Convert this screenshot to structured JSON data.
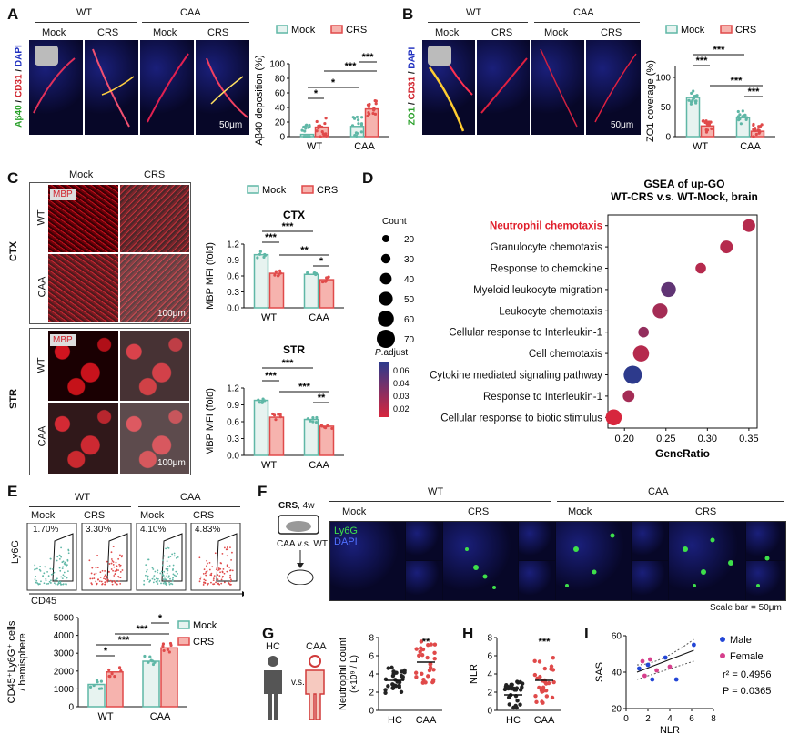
{
  "panels": {
    "A": {
      "letter": "A",
      "group_labels": [
        "WT",
        "CAA"
      ],
      "cond_labels": [
        "Mock",
        "CRS",
        "Mock",
        "CRS"
      ],
      "stain_green": "Aβ40",
      "stain_red": "CD31",
      "stain_blue": "DAPI",
      "scale": "50μm",
      "legend": [
        "Mock",
        "CRS"
      ],
      "ylabel": "Aβ40 deposition (%)",
      "yticks": [
        "0",
        "20",
        "40",
        "60",
        "80",
        "100"
      ],
      "xticks": [
        "WT",
        "CAA"
      ],
      "sig": [
        "*",
        "*",
        "***",
        "***"
      ]
    },
    "B": {
      "letter": "B",
      "group_labels": [
        "WT",
        "CAA"
      ],
      "cond_labels": [
        "Mock",
        "CRS",
        "Mock",
        "CRS"
      ],
      "stain_green": "ZO1",
      "stain_red": "CD31",
      "stain_blue": "DAPI",
      "scale": "50μm",
      "legend": [
        "Mock",
        "CRS"
      ],
      "ylabel": "ZO1 coverage (%)",
      "yticks": [
        "0",
        "50",
        "100"
      ],
      "xticks": [
        "WT",
        "CAA"
      ],
      "sig": [
        "***",
        "***",
        "***",
        "***"
      ]
    },
    "C": {
      "letter": "C",
      "col_labels": [
        "Mock",
        "CRS"
      ],
      "row_labels": [
        "WT",
        "CAA",
        "WT",
        "CAA"
      ],
      "region_labels": [
        "CTX",
        "STR"
      ],
      "stain": "MBP",
      "scale": "100μm",
      "legend": [
        "Mock",
        "CRS"
      ],
      "ylabel": "MBP MFI (fold)",
      "ctx_title": "CTX",
      "str_title": "STR",
      "yticks": [
        "0.0",
        "0.3",
        "0.6",
        "0.9",
        "1.2"
      ],
      "xticks": [
        "WT",
        "CAA"
      ],
      "ctx_sig": [
        "***",
        "***",
        "**",
        "*"
      ],
      "str_sig": [
        "***",
        "***",
        "***",
        "**"
      ]
    },
    "D": {
      "letter": "D",
      "title_line1": "GSEA of up-GO",
      "title_line2": "WT-CRS v.s. WT-Mock, brain",
      "count_title": "Count",
      "count_values": [
        "20",
        "30",
        "40",
        "50",
        "60",
        "70"
      ],
      "padj_title_italic": "P",
      "padj_title_rest": ".adjust",
      "padj_ticks": [
        "0.06",
        "0.04",
        "0.03",
        "0.02"
      ],
      "xlabel": "GeneRatio",
      "xticks": [
        "0.20",
        "0.25",
        "0.30",
        "0.35"
      ]
    },
    "E": {
      "letter": "E",
      "group_labels": [
        "WT",
        "CAA"
      ],
      "cond_labels": [
        "Mock",
        "CRS",
        "Mock",
        "CRS"
      ],
      "percents": [
        "1.70%",
        "3.30%",
        "4.10%",
        "4.83%"
      ],
      "flow_y": "Ly6G",
      "flow_x": "CD45",
      "legend": [
        "Mock",
        "CRS"
      ],
      "ylabel_line1": "CD45⁺Ly6G⁺ cells",
      "ylabel_line2": "/ hemisphere",
      "yticks": [
        "0",
        "1000",
        "2000",
        "3000",
        "4000",
        "5000"
      ],
      "xticks": [
        "WT",
        "CAA"
      ],
      "sig": [
        "*",
        "***",
        "***",
        "*"
      ]
    },
    "F": {
      "letter": "F",
      "crs_bold": "CRS",
      "crs_rest": ", 4w",
      "compare": "CAA v.s. WT",
      "group_labels": [
        "WT",
        "CAA"
      ],
      "cond_labels": [
        "Mock",
        "CRS",
        "Mock",
        "CRS"
      ],
      "stain_green": "Ly6G",
      "stain_blue": "DAPI",
      "scale": "Scale bar = 50μm"
    },
    "G": {
      "letter": "G",
      "hc": "HC",
      "caa": "CAA",
      "vs": "v.s.",
      "ylabel_line1": "Neutrophil count",
      "ylabel_line2": "(×10⁹ / L)",
      "yticks": [
        "0",
        "2",
        "4",
        "6",
        "8"
      ],
      "xticks": [
        "HC",
        "CAA"
      ],
      "sig": "**"
    },
    "H": {
      "letter": "H",
      "ylabel": "NLR",
      "yticks": [
        "0",
        "2",
        "4",
        "6",
        "8"
      ],
      "xticks": [
        "HC",
        "CAA"
      ],
      "sig": "***"
    },
    "I": {
      "letter": "I",
      "ylabel": "SAS",
      "xlabel": "NLR",
      "yticks": [
        "20",
        "40",
        "60"
      ],
      "xticks": [
        "0",
        "2",
        "4",
        "6",
        "8"
      ],
      "legend_male": "Male",
      "legend_female": "Female",
      "r2": "r² = 0.4956",
      "p": "P = 0.0365"
    }
  },
  "colors": {
    "mock": "#5fb7a6",
    "crs": "#e04a4a",
    "dot_high": "#d7263d",
    "dot_low": "#2d3a8c",
    "male": "#2346d6",
    "female": "#d63f8c"
  },
  "chart_data": [
    {
      "type": "bar",
      "panel": "A",
      "categories": [
        "WT",
        "CAA"
      ],
      "series": [
        {
          "name": "Mock",
          "values": [
            3,
            14
          ]
        },
        {
          "name": "CRS",
          "values": [
            13,
            38
          ]
        }
      ],
      "ylabel": "Aβ40 deposition (%)",
      "ylim": [
        0,
        100
      ]
    },
    {
      "type": "bar",
      "panel": "B",
      "categories": [
        "WT",
        "CAA"
      ],
      "series": [
        {
          "name": "Mock",
          "values": [
            66,
            32
          ]
        },
        {
          "name": "CRS",
          "values": [
            18,
            9
          ]
        }
      ],
      "ylabel": "ZO1 coverage (%)",
      "ylim": [
        0,
        120
      ]
    },
    {
      "type": "bar",
      "panel": "C-CTX",
      "title": "CTX",
      "categories": [
        "WT",
        "CAA"
      ],
      "series": [
        {
          "name": "Mock",
          "values": [
            1.0,
            0.63
          ]
        },
        {
          "name": "CRS",
          "values": [
            0.65,
            0.53
          ]
        }
      ],
      "ylabel": "MBP MFI (fold)",
      "ylim": [
        0,
        1.2
      ]
    },
    {
      "type": "bar",
      "panel": "C-STR",
      "title": "STR",
      "categories": [
        "WT",
        "CAA"
      ],
      "series": [
        {
          "name": "Mock",
          "values": [
            0.98,
            0.64
          ]
        },
        {
          "name": "CRS",
          "values": [
            0.68,
            0.52
          ]
        }
      ],
      "ylabel": "MBP MFI (fold)",
      "ylim": [
        0,
        1.2
      ]
    },
    {
      "type": "scatter",
      "panel": "D",
      "title": "GSEA of up-GO WT-CRS v.s. WT-Mock, brain",
      "xlabel": "GeneRatio",
      "xlim": [
        0.18,
        0.36
      ],
      "terms": [
        "Neutrophil chemotaxis",
        "Granulocyte chemotaxis",
        "Response to chemokine",
        "Myeloid leukocyte migration",
        "Leukocyte chemotaxis",
        "Cellular response to Interleukin-1",
        "Cell chemotaxis",
        "Cytokine mediated signaling pathway",
        "Response to Interleukin-1",
        "Cellular response to biotic stimulus"
      ],
      "gene_ratio": [
        0.35,
        0.323,
        0.292,
        0.253,
        0.243,
        0.223,
        0.22,
        0.21,
        0.205,
        0.187
      ],
      "count": [
        45,
        45,
        35,
        55,
        55,
        35,
        60,
        70,
        40,
        60
      ],
      "p_adjust": [
        0.02,
        0.02,
        0.02,
        0.045,
        0.025,
        0.03,
        0.02,
        0.06,
        0.025,
        0.01
      ]
    },
    {
      "type": "bar",
      "panel": "E",
      "categories": [
        "WT",
        "CAA"
      ],
      "series": [
        {
          "name": "Mock",
          "values": [
            1250,
            2550
          ]
        },
        {
          "name": "CRS",
          "values": [
            1950,
            3300
          ]
        }
      ],
      "ylabel": "CD45⁺Ly6G⁺ cells / hemisphere",
      "ylim": [
        0,
        5000
      ]
    },
    {
      "type": "scatter",
      "panel": "G",
      "categories": [
        "HC",
        "CAA"
      ],
      "means": [
        3.3,
        5.3
      ],
      "ylabel": "Neutrophil count (×10⁹ / L)",
      "ylim": [
        0,
        8
      ]
    },
    {
      "type": "scatter",
      "panel": "H",
      "categories": [
        "HC",
        "CAA"
      ],
      "means": [
        1.7,
        3.3
      ],
      "ylabel": "NLR",
      "ylim": [
        0,
        8
      ]
    },
    {
      "type": "scatter",
      "panel": "I",
      "xlabel": "NLR",
      "ylabel": "SAS",
      "xlim": [
        0,
        8
      ],
      "ylim": [
        20,
        60
      ],
      "points": [
        [
          1.2,
          42,
          "Male"
        ],
        [
          1.5,
          46,
          "Female"
        ],
        [
          1.7,
          38,
          "Female"
        ],
        [
          2.0,
          44,
          "Male"
        ],
        [
          2.2,
          47,
          "Female"
        ],
        [
          2.4,
          36,
          "Male"
        ],
        [
          2.8,
          41,
          "Female"
        ],
        [
          3.6,
          48,
          "Male"
        ],
        [
          4.0,
          43,
          "Female"
        ],
        [
          4.6,
          36,
          "Male"
        ],
        [
          6.2,
          55,
          "Male"
        ]
      ]
    }
  ]
}
